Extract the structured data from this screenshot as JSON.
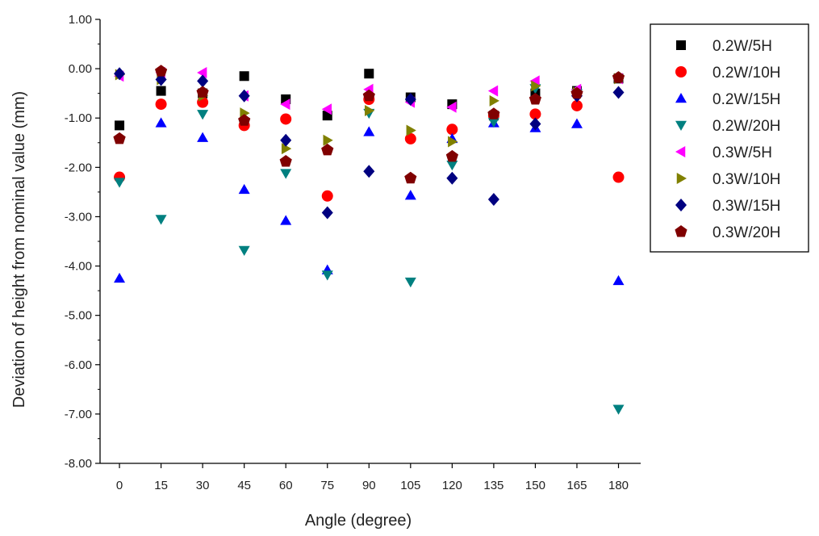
{
  "chart_data": {
    "type": "scatter",
    "title": "",
    "xlabel": "Angle (degree)",
    "ylabel": "Deviation of height from nominal value (mm)",
    "x": [
      0,
      15,
      30,
      45,
      60,
      75,
      90,
      105,
      120,
      135,
      150,
      165,
      180
    ],
    "x_ticks": [
      "0",
      "15",
      "30",
      "45",
      "60",
      "75",
      "90",
      "105",
      "120",
      "135",
      "150",
      "165",
      "180"
    ],
    "y_ticks": [
      "1.00",
      "0.00",
      "-1.00",
      "-2.00",
      "-3.00",
      "-4.00",
      "-5.00",
      "-6.00",
      "-7.00",
      "-8.00"
    ],
    "xlim": [
      -7,
      188
    ],
    "ylim": [
      -8,
      1
    ],
    "grid": false,
    "legend_position": "top-right",
    "series": [
      {
        "name": "0.2W/5H",
        "marker": "square",
        "color": "#000000",
        "values": [
          -1.15,
          -0.45,
          -0.5,
          -0.15,
          -0.62,
          -0.95,
          -0.1,
          -0.58,
          -0.72,
          -0.95,
          -0.5,
          -0.45,
          -0.2
        ]
      },
      {
        "name": "0.2W/10H",
        "marker": "circle",
        "color": "#ff0000",
        "values": [
          -2.2,
          -0.72,
          -0.68,
          -1.15,
          -1.02,
          -2.58,
          -0.62,
          -1.42,
          -1.23,
          -0.95,
          -0.92,
          -0.75,
          -2.2
        ]
      },
      {
        "name": "0.2W/15H",
        "marker": "triangle-up",
        "color": "#0000ff",
        "values": [
          -4.25,
          -1.1,
          -1.4,
          -2.45,
          -3.08,
          -4.08,
          -1.28,
          -2.57,
          -1.42,
          -1.1,
          -1.2,
          -1.12,
          -4.3
        ]
      },
      {
        "name": "0.2W/20H",
        "marker": "triangle-down",
        "color": "#008080",
        "values": [
          -2.3,
          -3.05,
          -0.92,
          -3.68,
          -2.12,
          -4.18,
          -0.9,
          -4.32,
          -1.95,
          -1.08,
          -0.4,
          -0.5,
          -6.9
        ]
      },
      {
        "name": "0.3W/5H",
        "marker": "triangle-left",
        "color": "#ff00ff",
        "values": [
          -0.15,
          -0.08,
          -0.08,
          -0.55,
          -0.72,
          -0.82,
          -0.42,
          -0.68,
          -0.78,
          -0.45,
          -0.25,
          -0.42,
          -0.2
        ]
      },
      {
        "name": "0.3W/10H",
        "marker": "triangle-right",
        "color": "#808000",
        "values": [
          -0.12,
          -0.22,
          -0.55,
          -0.9,
          -1.62,
          -1.45,
          -0.85,
          -1.25,
          -1.48,
          -0.65,
          -0.35,
          -0.48,
          -0.2
        ]
      },
      {
        "name": "0.3W/15H",
        "marker": "diamond",
        "color": "#000080",
        "values": [
          -0.1,
          -0.22,
          -0.25,
          -0.55,
          -1.45,
          -2.92,
          -2.08,
          -0.62,
          -2.22,
          -2.65,
          -1.12,
          -0.55,
          -0.48
        ]
      },
      {
        "name": "0.3W/20H",
        "marker": "pentagon",
        "color": "#800000",
        "values": [
          -1.42,
          -0.05,
          -0.48,
          -1.05,
          -1.88,
          -1.65,
          -0.55,
          -2.22,
          -1.78,
          -0.92,
          -0.62,
          -0.5,
          -0.18
        ]
      }
    ]
  }
}
